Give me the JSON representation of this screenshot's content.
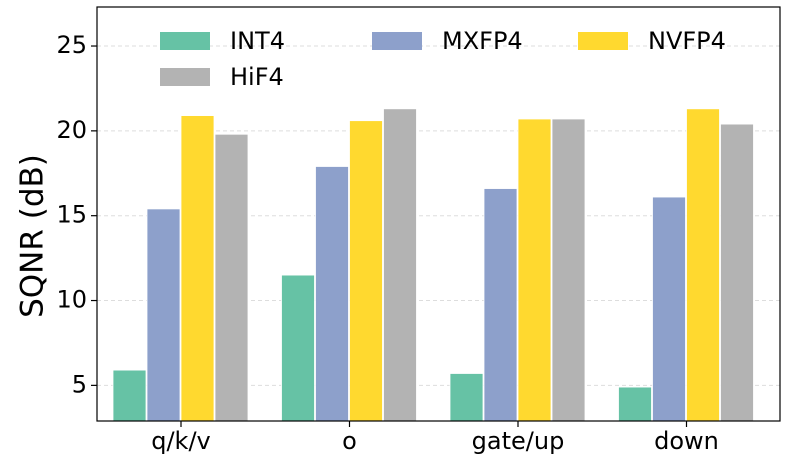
{
  "chart_data": {
    "type": "bar",
    "title": "",
    "xlabel": "",
    "ylabel": "SQNR (dB)",
    "categories": [
      "q/k/v",
      "o",
      "gate/up",
      "down"
    ],
    "series": [
      {
        "name": "INT4",
        "color": "#66c2a5",
        "values": [
          5.9,
          11.5,
          5.7,
          4.9
        ]
      },
      {
        "name": "MXFP4",
        "color": "#8da0cb",
        "values": [
          15.4,
          17.9,
          16.6,
          16.1
        ]
      },
      {
        "name": "NVFP4",
        "color": "#ffd92f",
        "values": [
          20.9,
          20.6,
          20.7,
          21.3
        ]
      },
      {
        "name": "HiF4",
        "color": "#b3b3b3",
        "values": [
          19.8,
          21.3,
          20.7,
          20.4
        ]
      }
    ],
    "ylim": [
      2.9,
      27.3
    ],
    "yticks": [
      5,
      10,
      15,
      20,
      25
    ],
    "grid": "y-dashed",
    "legend_position": "top"
  }
}
